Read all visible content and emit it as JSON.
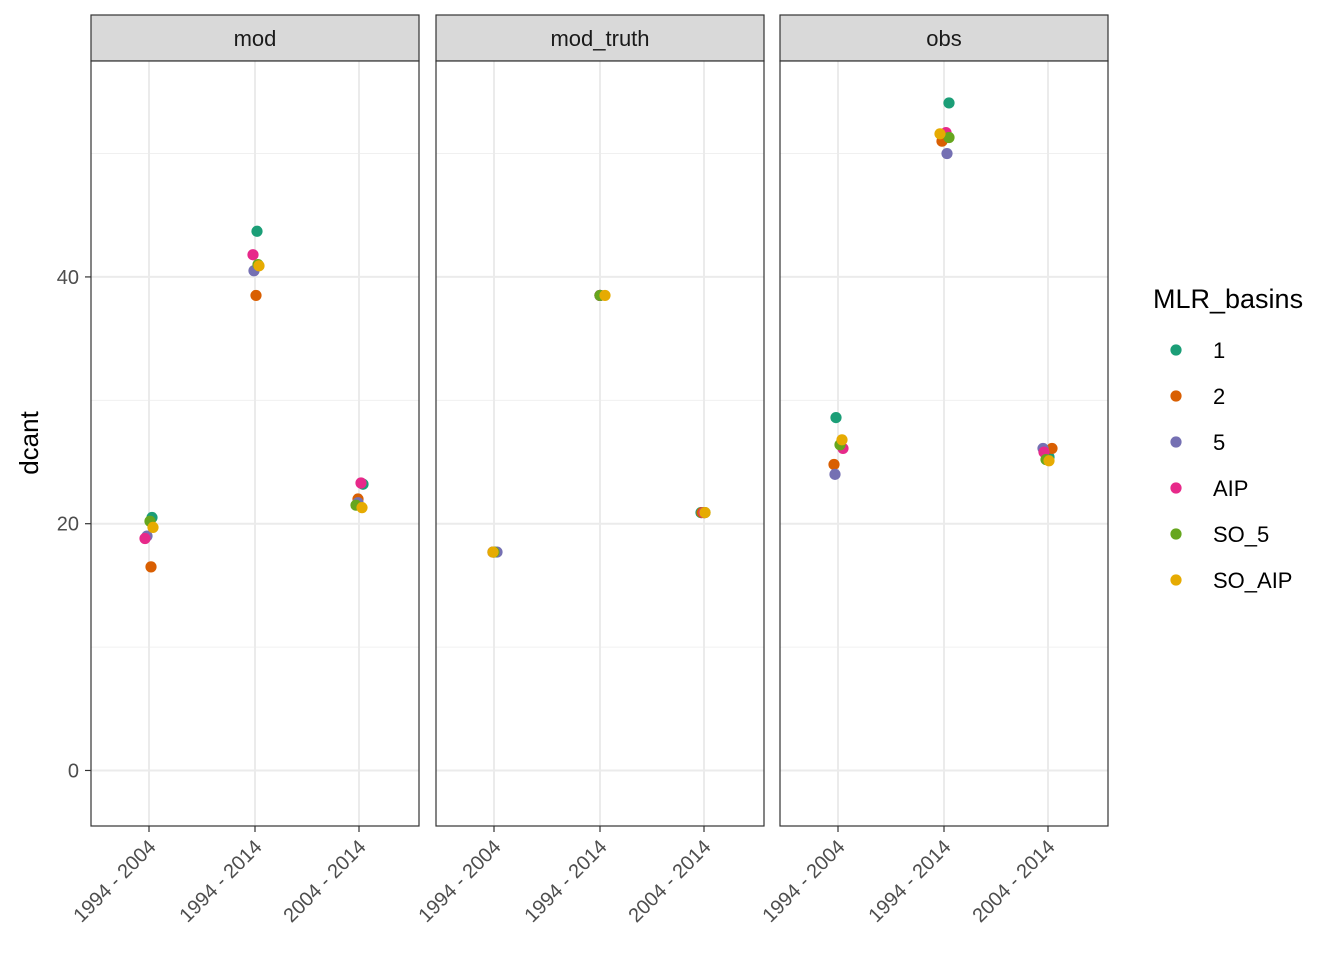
{
  "chart_data": {
    "type": "scatter",
    "ylabel": "dcant",
    "xlabel": "",
    "ylim": [
      -4.5,
      57.5
    ],
    "y_ticks": [
      0,
      20,
      40
    ],
    "grid": true,
    "legend": {
      "title": "MLR_basins",
      "placement": "right",
      "entries": [
        {
          "name": "1",
          "color": "#1b9e77"
        },
        {
          "name": "2",
          "color": "#d95f02"
        },
        {
          "name": "5",
          "color": "#7570b3"
        },
        {
          "name": "AIP",
          "color": "#e7298a"
        },
        {
          "name": "SO_5",
          "color": "#66a61e"
        },
        {
          "name": "SO_AIP",
          "color": "#e6ab02"
        }
      ]
    },
    "categories": [
      "1994 - 2004",
      "1994 - 2014",
      "2004 - 2014"
    ],
    "panels": [
      {
        "title": "mod",
        "series": [
          {
            "name": "1",
            "values": [
              20.5,
              43.7,
              23.2
            ]
          },
          {
            "name": "2",
            "values": [
              16.5,
              38.5,
              22.0
            ]
          },
          {
            "name": "5",
            "values": [
              19.0,
              40.5,
              21.7
            ]
          },
          {
            "name": "AIP",
            "values": [
              18.8,
              41.8,
              23.3
            ]
          },
          {
            "name": "SO_5",
            "values": [
              20.2,
              41.0,
              21.5
            ]
          },
          {
            "name": "SO_AIP",
            "values": [
              19.7,
              40.9,
              21.3
            ]
          }
        ]
      },
      {
        "title": "mod_truth",
        "series": [
          {
            "name": "1",
            "values": [
              17.7,
              38.5,
              20.9
            ]
          },
          {
            "name": "2",
            "values": [
              17.7,
              38.5,
              20.9
            ]
          },
          {
            "name": "5",
            "values": [
              17.7,
              38.5,
              20.9
            ]
          },
          {
            "name": "AIP",
            "values": [
              17.7,
              38.5,
              20.9
            ]
          },
          {
            "name": "SO_5",
            "values": [
              17.7,
              38.5,
              20.9
            ]
          },
          {
            "name": "SO_AIP",
            "values": [
              17.7,
              38.5,
              20.9
            ]
          }
        ]
      },
      {
        "title": "obs",
        "series": [
          {
            "name": "1",
            "values": [
              28.6,
              54.1,
              25.4
            ]
          },
          {
            "name": "2",
            "values": [
              24.8,
              51.0,
              26.1
            ]
          },
          {
            "name": "5",
            "values": [
              24.0,
              50.0,
              26.1
            ]
          },
          {
            "name": "AIP",
            "values": [
              26.1,
              51.7,
              25.8
            ]
          },
          {
            "name": "SO_5",
            "values": [
              26.4,
              51.3,
              25.2
            ]
          },
          {
            "name": "SO_AIP",
            "values": [
              26.8,
              51.6,
              25.1
            ]
          }
        ]
      }
    ]
  }
}
